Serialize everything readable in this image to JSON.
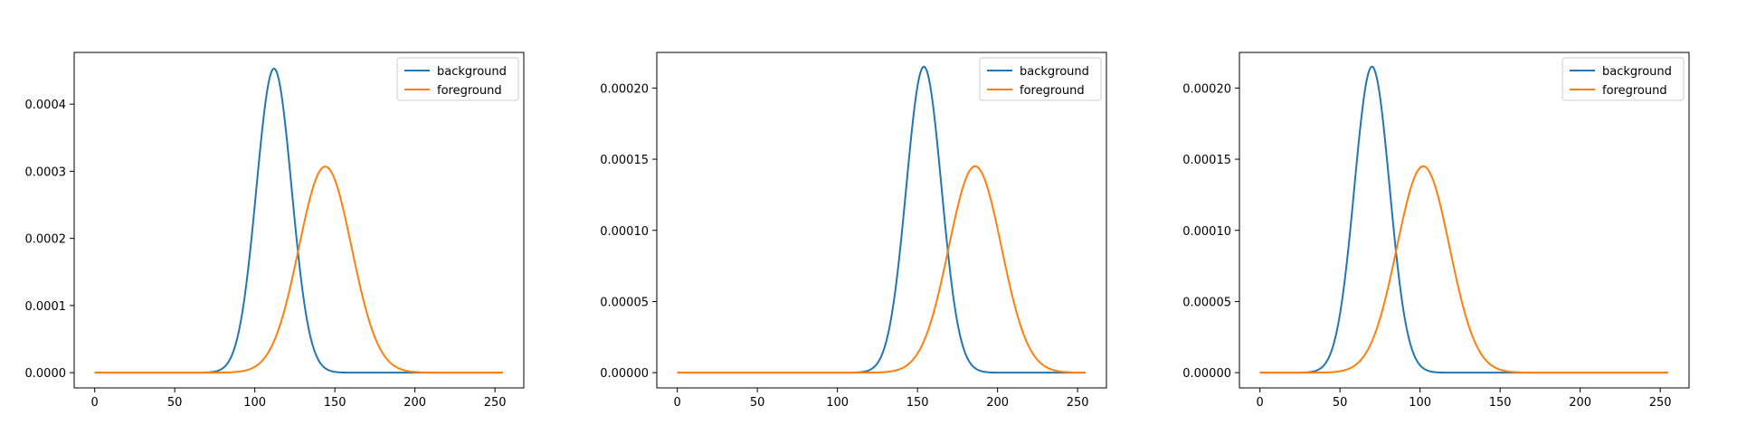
{
  "chart_data": [
    {
      "type": "line",
      "title": "",
      "xlabel": "",
      "ylabel": "",
      "xlim": [
        -12.8,
        268
      ],
      "ylim": [
        -2.27e-05,
        0.000477
      ],
      "xticks": [
        0,
        50,
        100,
        150,
        200,
        250
      ],
      "xtick_labels": [
        "0",
        "50",
        "100",
        "150",
        "200",
        "250"
      ],
      "yticks": [
        0.0,
        0.0001,
        0.0002,
        0.0003,
        0.0004
      ],
      "ytick_labels": [
        "0.0000",
        "0.0001",
        "0.0002",
        "0.0003",
        "0.0004"
      ],
      "grid": false,
      "legend_position": "top-right",
      "series": [
        {
          "name": "background",
          "color": "#1f77b4",
          "shape": "gaussian",
          "mean": 112,
          "std": 11,
          "peak": 0.000453,
          "x_range": [
            0,
            255
          ]
        },
        {
          "name": "foreground",
          "color": "#ff7f0e",
          "shape": "gaussian",
          "mean": 144,
          "std": 16.5,
          "peak": 0.000307,
          "x_range": [
            0,
            255
          ]
        }
      ]
    },
    {
      "type": "line",
      "title": "",
      "xlabel": "",
      "ylabel": "",
      "xlim": [
        -12.8,
        268
      ],
      "ylim": [
        -1.07e-05,
        0.000225
      ],
      "xticks": [
        0,
        50,
        100,
        150,
        200,
        250
      ],
      "xtick_labels": [
        "0",
        "50",
        "100",
        "150",
        "200",
        "250"
      ],
      "yticks": [
        0.0,
        5e-05,
        0.0001,
        0.00015,
        0.0002
      ],
      "ytick_labels": [
        "0.00000",
        "0.00005",
        "0.00010",
        "0.00015",
        "0.00020"
      ],
      "grid": false,
      "legend_position": "top-right",
      "series": [
        {
          "name": "background",
          "color": "#1f77b4",
          "shape": "gaussian",
          "mean": 154,
          "std": 11,
          "peak": 0.000215,
          "x_range": [
            0,
            255
          ]
        },
        {
          "name": "foreground",
          "color": "#ff7f0e",
          "shape": "gaussian",
          "mean": 186,
          "std": 16.5,
          "peak": 0.000145,
          "x_range": [
            0,
            255
          ]
        }
      ]
    },
    {
      "type": "line",
      "title": "",
      "xlabel": "",
      "ylabel": "",
      "xlim": [
        -12.8,
        268
      ],
      "ylim": [
        -1.07e-05,
        0.000225
      ],
      "xticks": [
        0,
        50,
        100,
        150,
        200,
        250
      ],
      "xtick_labels": [
        "0",
        "50",
        "100",
        "150",
        "200",
        "250"
      ],
      "yticks": [
        0.0,
        5e-05,
        0.0001,
        0.00015,
        0.0002
      ],
      "ytick_labels": [
        "0.00000",
        "0.00005",
        "0.00010",
        "0.00015",
        "0.00020"
      ],
      "grid": false,
      "legend_position": "top-right",
      "series": [
        {
          "name": "background",
          "color": "#1f77b4",
          "shape": "gaussian",
          "mean": 70,
          "std": 11,
          "peak": 0.000215,
          "x_range": [
            0,
            255
          ]
        },
        {
          "name": "foreground",
          "color": "#ff7f0e",
          "shape": "gaussian",
          "mean": 102,
          "std": 16.5,
          "peak": 0.000145,
          "x_range": [
            0,
            255
          ]
        }
      ]
    }
  ]
}
